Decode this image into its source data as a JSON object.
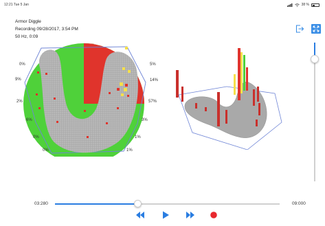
{
  "status_bar": {
    "time": "12:21  Tue 5 Jan",
    "battery": "38 %"
  },
  "recording": {
    "name": "Armor Diggle",
    "date": "Recording 09/28/2017, 3:54 PM",
    "frequency": "50 Hz, 0:09"
  },
  "colors": {
    "accent": "#2a7de1",
    "record": "#e8282e",
    "pressure_high": "#e0342c",
    "pressure_low": "#4fd13a",
    "sole": "#a9a9a9"
  },
  "top_actions": {
    "export_icon": "export-icon",
    "expand_icon": "expand-icon"
  },
  "percentages_left": [
    "0%",
    "9%",
    "2%",
    "6%",
    "0%",
    "0%"
  ],
  "percentages_right": [
    "5%",
    "14%",
    "57%",
    "3%",
    "1%",
    "1%"
  ],
  "vertical_slider": {
    "level": 0.12
  },
  "timeline": {
    "start_label": "03:280",
    "end_label": "09:000",
    "progress": 0.37
  },
  "controls": {
    "rewind_icon": "rewind-icon",
    "play_icon": "play-icon",
    "forward_icon": "fast-forward-icon",
    "record_icon": "record-icon"
  }
}
